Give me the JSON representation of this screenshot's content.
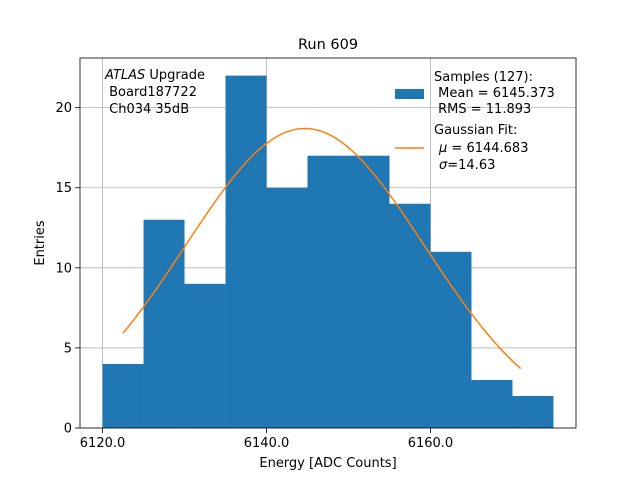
{
  "chart_data": {
    "type": "bar",
    "title": "Run 609",
    "xlabel": "Energy [ADC Counts]",
    "ylabel": "Entries",
    "xlim": [
      6117.25,
      6177.75
    ],
    "ylim": [
      0,
      23.1
    ],
    "x_ticks": [
      6120,
      6140,
      6160
    ],
    "x_tick_labels": [
      "6120.0",
      "6140.0",
      "6160.0"
    ],
    "y_ticks": [
      0,
      5,
      10,
      15,
      20
    ],
    "y_tick_labels": [
      "0",
      "5",
      "10",
      "15",
      "20"
    ],
    "grid": true,
    "histogram": {
      "name": "Samples (127):",
      "bin_edges": [
        6120,
        6125,
        6130,
        6135,
        6140,
        6145,
        6150,
        6155,
        6160,
        6165,
        6170,
        6175
      ],
      "counts": [
        4,
        13,
        9,
        22,
        15,
        17,
        17,
        14,
        11,
        3,
        2
      ],
      "color": "#1f77b4"
    },
    "fit": {
      "name": "Gaussian Fit:",
      "type": "gaussian",
      "mu": 6144.683,
      "sigma": 14.63,
      "amplitude": 18.7,
      "x_range": [
        6122.5,
        6171
      ],
      "color": "#ff7f0e"
    },
    "annotation": {
      "experiment": "ATLAS",
      "experiment_suffix": " Upgrade",
      "board": " Board187722",
      "channel": " Ch034 35dB"
    },
    "legend": {
      "position": "top-right",
      "samples_title": "Samples (127):",
      "samples_mean": " Mean = 6145.373",
      "samples_rms": " RMS = 11.893",
      "fit_title": "Gaussian Fit:",
      "fit_mu_symbol": "μ",
      "fit_mu_value": " = 6144.683",
      "fit_sigma_symbol": "σ",
      "fit_sigma_value": "=14.63"
    }
  }
}
